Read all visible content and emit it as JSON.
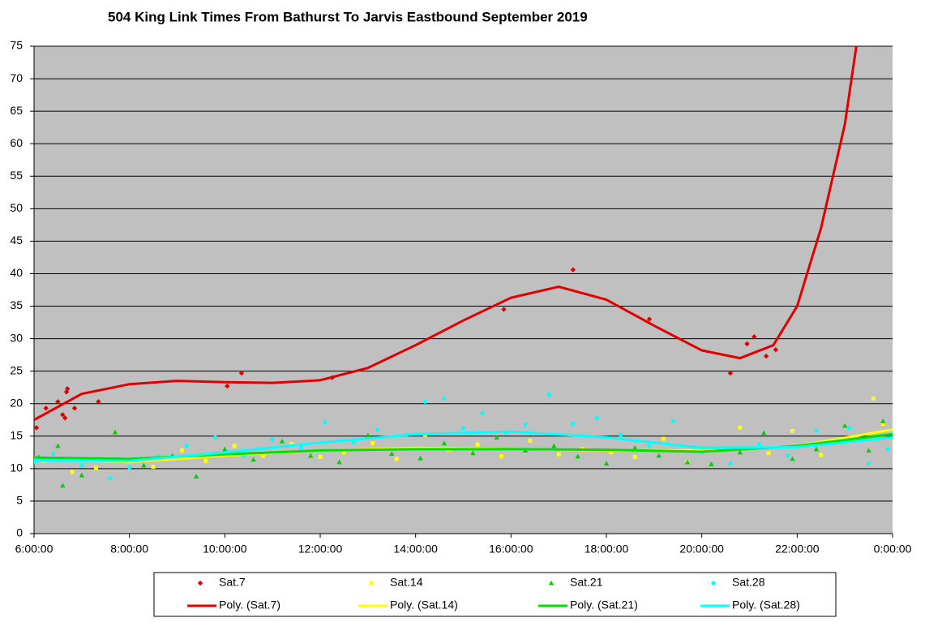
{
  "chart_data": {
    "type": "scatter",
    "title": "504 King Link Times From Bathurst To Jarvis Eastbound September 2019",
    "xlim": [
      6,
      24
    ],
    "ylim": [
      0,
      75
    ],
    "xticks": [
      {
        "value": 6,
        "label": "6:00:00"
      },
      {
        "value": 8,
        "label": "8:00:00"
      },
      {
        "value": 10,
        "label": "10:00:00"
      },
      {
        "value": 12,
        "label": "12:00:00"
      },
      {
        "value": 14,
        "label": "14:00:00"
      },
      {
        "value": 16,
        "label": "16:00:00"
      },
      {
        "value": 18,
        "label": "18:00:00"
      },
      {
        "value": 20,
        "label": "20:00:00"
      },
      {
        "value": 22,
        "label": "22:00:00"
      },
      {
        "value": 24,
        "label": "0:00:00"
      }
    ],
    "yticks": [
      0,
      5,
      10,
      15,
      20,
      25,
      30,
      35,
      40,
      45,
      50,
      55,
      60,
      65,
      70,
      75
    ],
    "grid": true,
    "background": "#c0c0c0",
    "legend": "bottom",
    "series": [
      {
        "name": "Sat.7",
        "color": "#e00000",
        "marker": "diamond",
        "x": [
          6.05,
          6.25,
          6.5,
          6.6,
          6.65,
          6.68,
          6.7,
          6.85,
          7.35,
          10.05,
          10.35,
          12.25,
          15.85,
          17.3,
          18.9,
          20.6,
          20.95,
          21.1,
          21.35,
          21.55
        ],
        "values": [
          16.3,
          19.3,
          20.3,
          18.3,
          17.8,
          21.8,
          22.3,
          19.3,
          20.3,
          22.7,
          24.7,
          24,
          34.5,
          40.6,
          33,
          24.7,
          29.2,
          30.3,
          27.3,
          28.3
        ]
      },
      {
        "name": "Sat.14",
        "color": "#ffff00",
        "marker": "square",
        "x": [
          6.2,
          6.8,
          7.3,
          7.9,
          8.5,
          9.1,
          9.6,
          10.2,
          10.8,
          11.4,
          12.0,
          12.5,
          13.1,
          13.6,
          14.2,
          14.7,
          15.3,
          15.8,
          16.4,
          17.0,
          17.5,
          18.1,
          18.6,
          19.2,
          19.7,
          20.3,
          20.8,
          21.4,
          21.9,
          22.5,
          23.0,
          23.6,
          23.8
        ],
        "values": [
          11.2,
          9.5,
          10.1,
          11.4,
          10.3,
          12.8,
          11.2,
          13.5,
          12.0,
          13.8,
          11.8,
          12.5,
          13.9,
          11.5,
          15.2,
          12.9,
          13.7,
          11.9,
          14.3,
          12.2,
          13.0,
          12.5,
          11.8,
          14.6,
          11.0,
          13.1,
          16.3,
          12.4,
          15.8,
          12.1,
          14.2,
          20.8,
          16.9
        ]
      },
      {
        "name": "Sat.21",
        "color": "#00d000",
        "marker": "triangle",
        "x": [
          6.1,
          6.5,
          6.6,
          7.0,
          7.7,
          8.3,
          8.9,
          9.4,
          10.0,
          10.6,
          11.2,
          11.8,
          12.4,
          13.0,
          13.5,
          14.1,
          14.6,
          15.2,
          15.7,
          16.3,
          16.9,
          17.4,
          18.0,
          18.6,
          19.1,
          19.7,
          20.2,
          20.8,
          21.3,
          21.9,
          22.4,
          23.0,
          23.5,
          23.8
        ],
        "values": [
          11.8,
          13.5,
          7.4,
          9.0,
          15.6,
          10.5,
          12.0,
          8.8,
          13.0,
          11.4,
          14.2,
          12.0,
          11.0,
          15.1,
          12.3,
          11.6,
          13.9,
          12.4,
          14.8,
          12.8,
          13.5,
          11.9,
          10.8,
          13.2,
          12.0,
          11.0,
          10.7,
          12.5,
          15.5,
          11.5,
          13.0,
          16.6,
          12.8,
          17.3
        ]
      },
      {
        "name": "Sat.28",
        "color": "#00ffff",
        "marker": "circle",
        "x": [
          6.0,
          6.4,
          7.0,
          7.6,
          8.0,
          8.6,
          9.2,
          9.8,
          10.4,
          11.0,
          11.6,
          12.1,
          12.7,
          13.2,
          13.8,
          14.2,
          14.6,
          15.0,
          15.4,
          15.9,
          16.3,
          16.8,
          17.3,
          17.8,
          18.3,
          18.9,
          19.4,
          20.0,
          20.6,
          21.2,
          21.8,
          22.4,
          23.1,
          23.5,
          23.9
        ],
        "values": [
          11.0,
          12.3,
          10.5,
          8.5,
          10.2,
          11.8,
          13.5,
          14.8,
          12.0,
          14.5,
          13.2,
          17.1,
          14.0,
          16.0,
          15.2,
          20.3,
          20.8,
          16.2,
          18.5,
          15.5,
          16.8,
          21.4,
          16.9,
          17.8,
          15.2,
          13.5,
          17.3,
          12.5,
          10.8,
          13.8,
          12.0,
          15.8,
          16.2,
          10.8,
          13.0
        ]
      },
      {
        "name": "Poly. (Sat.7)",
        "color": "#e00000",
        "marker": "line",
        "x": [
          6,
          7,
          8,
          9,
          10,
          11,
          12,
          13,
          14,
          15,
          16,
          17,
          18,
          19,
          20,
          20.8,
          21.5,
          22,
          22.5,
          23,
          23.24
        ],
        "values": [
          17.5,
          21.5,
          23,
          23.5,
          23.3,
          23.2,
          23.6,
          25.5,
          29,
          32.8,
          36.3,
          38,
          36,
          32,
          28.2,
          27,
          29,
          35,
          47,
          63,
          75
        ]
      },
      {
        "name": "Poly. (Sat.14)",
        "color": "#ffff00",
        "marker": "line",
        "x": [
          6,
          8,
          10,
          12,
          14,
          16,
          18,
          20,
          22,
          24
        ],
        "values": [
          11.5,
          11,
          12,
          12.8,
          13.2,
          13,
          12.8,
          12.8,
          13.5,
          16
        ]
      },
      {
        "name": "Poly. (Sat.21)",
        "color": "#00e000",
        "marker": "line",
        "x": [
          6,
          8,
          10,
          12,
          14,
          16,
          18,
          20,
          22,
          24
        ],
        "values": [
          11.7,
          11.5,
          12.2,
          12.8,
          13,
          13,
          12.9,
          12.6,
          13.5,
          15.3
        ]
      },
      {
        "name": "Poly. (Sat.28)",
        "color": "#00ffff",
        "marker": "line",
        "x": [
          6,
          8,
          10,
          12,
          14,
          16,
          18,
          20,
          22,
          24
        ],
        "values": [
          11.3,
          11.2,
          12.5,
          14,
          15.3,
          15.7,
          14.8,
          13.2,
          13.3,
          14.8
        ]
      }
    ]
  }
}
